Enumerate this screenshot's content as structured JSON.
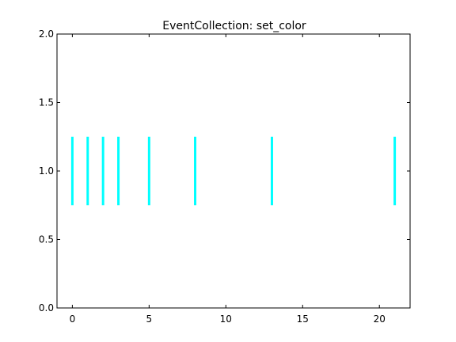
{
  "chart_data": {
    "type": "eventplot",
    "title": "EventCollection: set_color",
    "xlabel": "",
    "ylabel": "",
    "xlim": [
      -1,
      22
    ],
    "ylim": [
      0,
      2
    ],
    "xticks": [
      0,
      5,
      10,
      15,
      20
    ],
    "xtick_labels": [
      "0",
      "5",
      "10",
      "15",
      "20"
    ],
    "yticks": [
      0,
      0.5,
      1,
      1.5,
      2
    ],
    "ytick_labels": [
      "0.0",
      "0.5",
      "1.0",
      "1.5",
      "2.0"
    ],
    "grid": false,
    "series": [
      {
        "positions": [
          0,
          1,
          2,
          3,
          5,
          8,
          13,
          21
        ],
        "lineoffset": 1.0,
        "linelength": 0.5,
        "color": "#00ffff"
      }
    ]
  }
}
